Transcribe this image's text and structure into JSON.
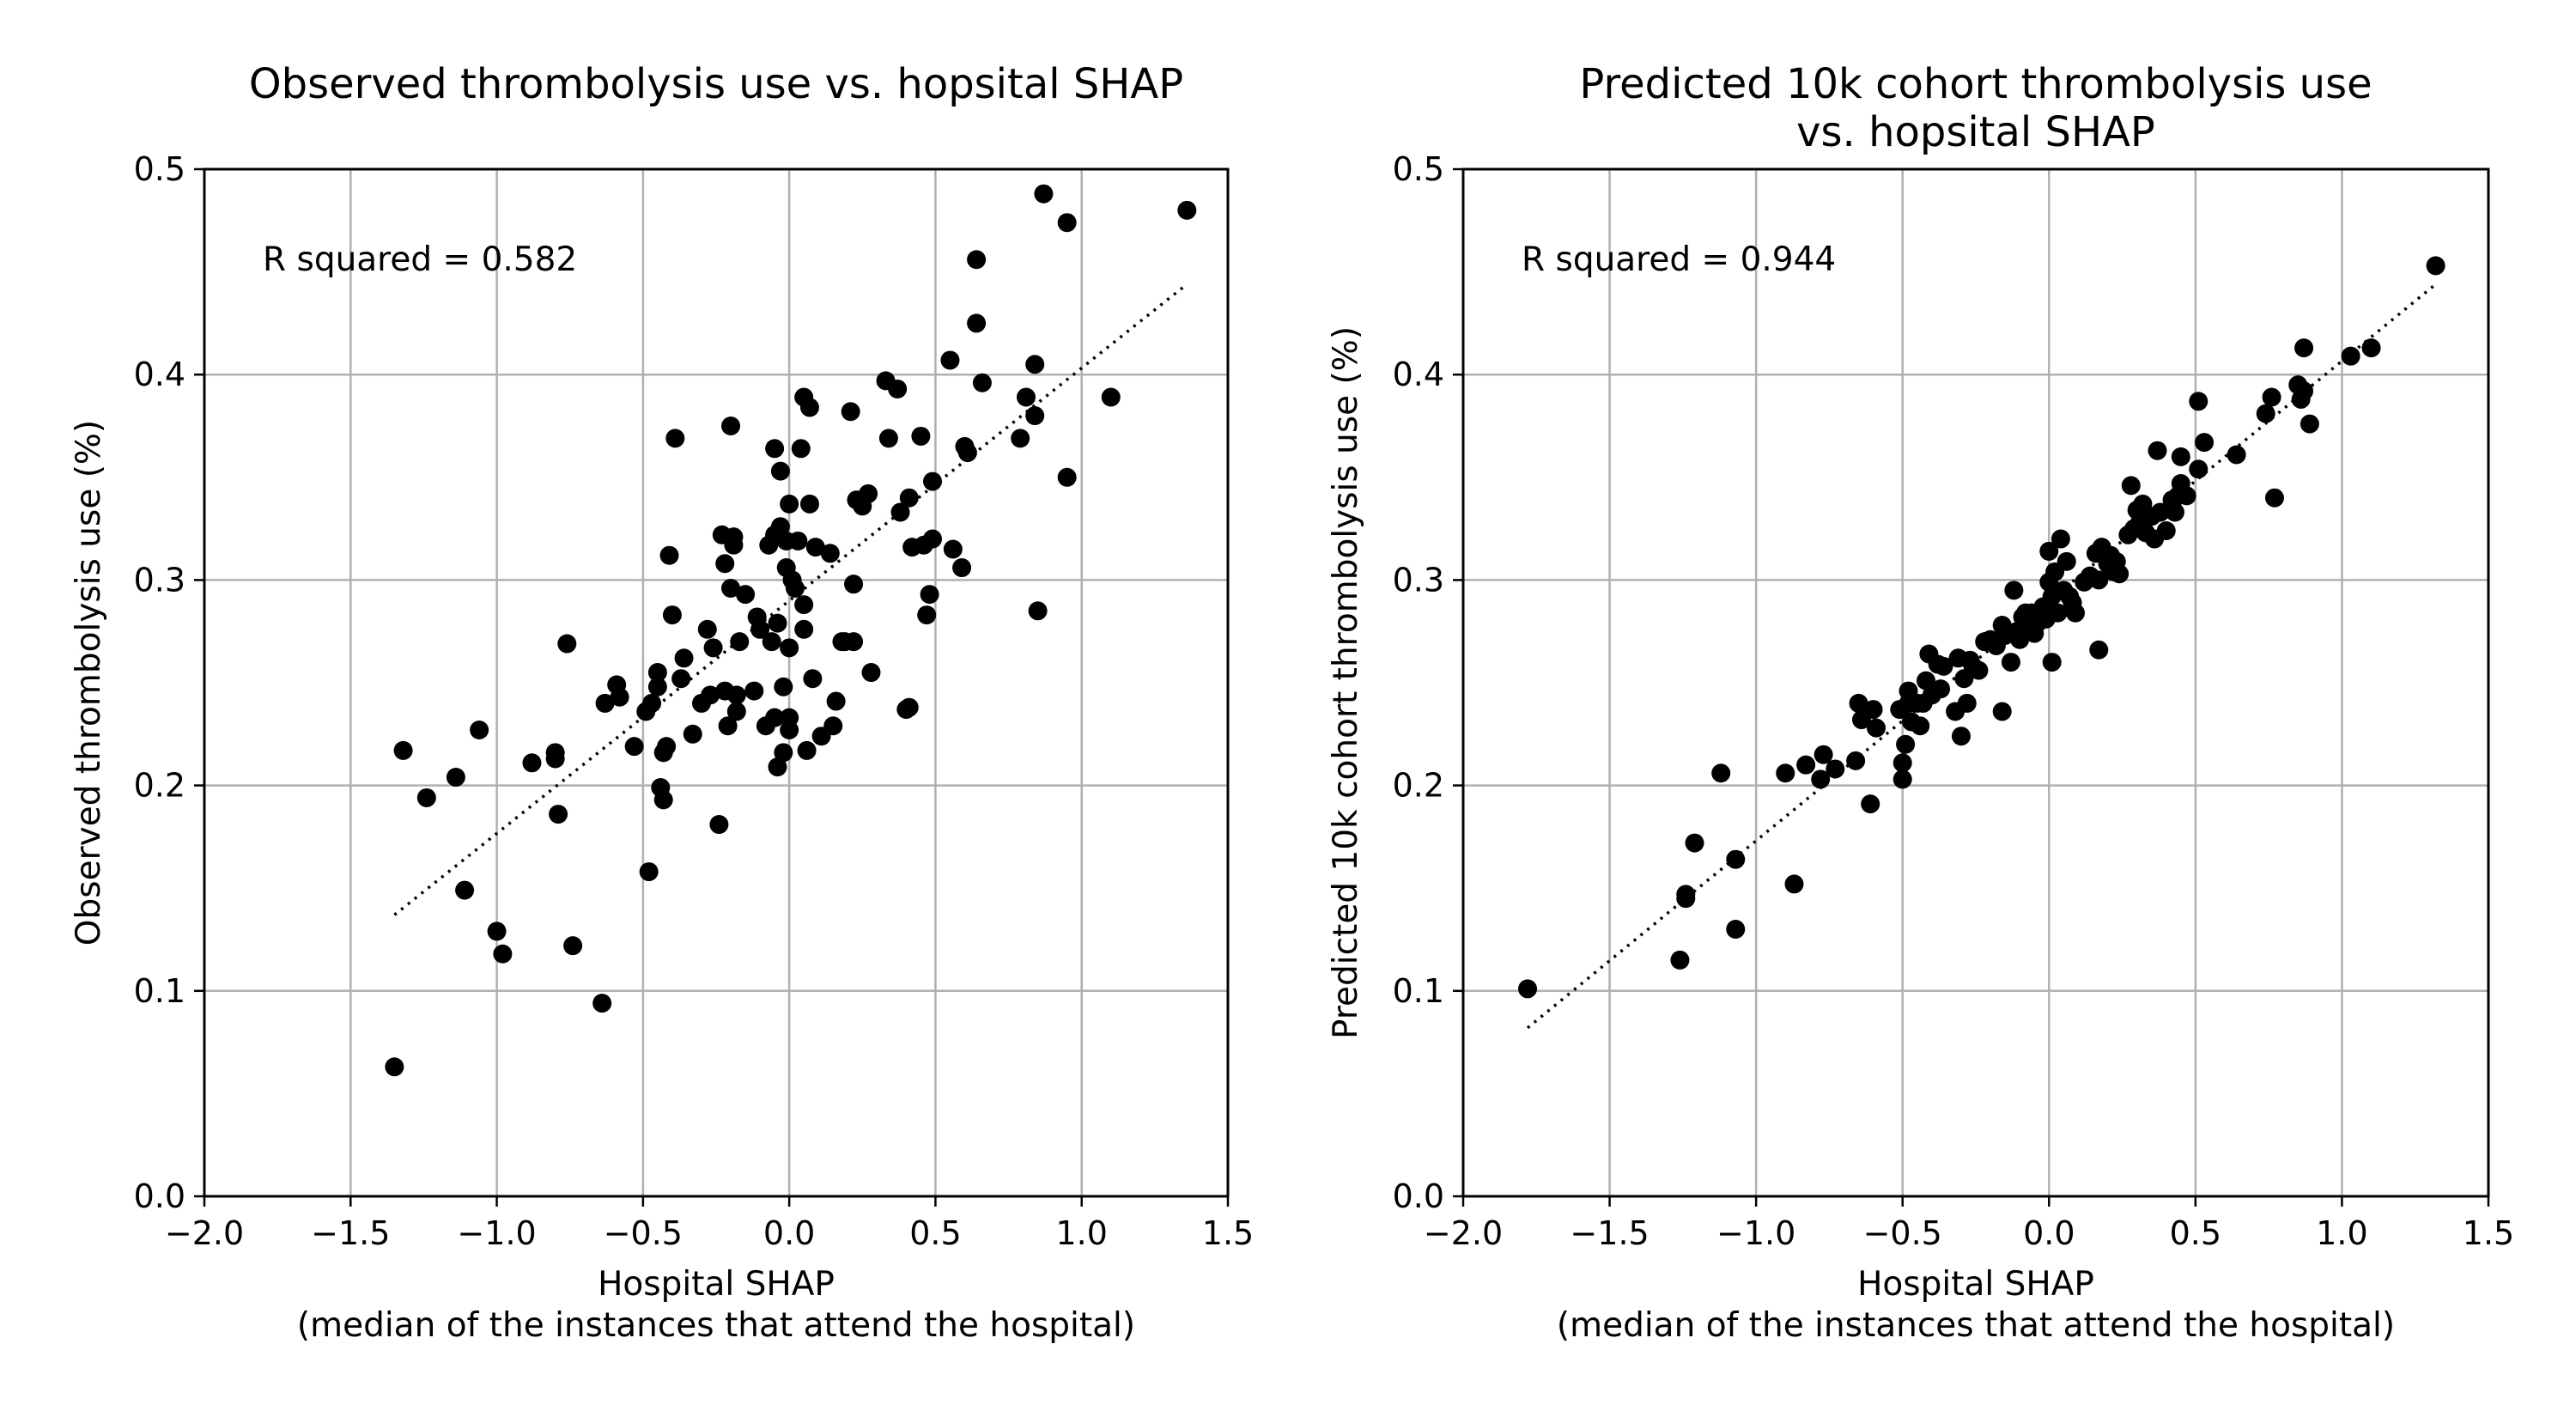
{
  "chart_data": [
    {
      "type": "scatter",
      "title": [
        "Observed thrombolysis use vs. hopsital SHAP"
      ],
      "xlabel": [
        "Hospital SHAP",
        "(median of the instances that attend the hospital)"
      ],
      "ylabel": "Observed thrombolysis use (%)",
      "xlim": [
        -2.0,
        1.5
      ],
      "ylim": [
        0.0,
        0.5
      ],
      "xticks": [
        "−2.0",
        "−1.5",
        "−1.0",
        "−0.5",
        "0.0",
        "0.5",
        "1.0",
        "1.5"
      ],
      "yticks": [
        "0.0",
        "0.1",
        "0.2",
        "0.3",
        "0.4",
        "0.5"
      ],
      "grid": true,
      "annotation": "R squared = 0.582",
      "trendline": {
        "x": [
          -1.35,
          1.36
        ],
        "y": [
          0.137,
          0.444
        ]
      },
      "points": [
        [
          -1.35,
          0.063
        ],
        [
          -1.32,
          0.217
        ],
        [
          -1.24,
          0.194
        ],
        [
          -1.14,
          0.204
        ],
        [
          -1.11,
          0.149
        ],
        [
          -1.06,
          0.227
        ],
        [
          -1.0,
          0.129
        ],
        [
          -0.98,
          0.118
        ],
        [
          -0.88,
          0.211
        ],
        [
          -0.8,
          0.216
        ],
        [
          -0.8,
          0.213
        ],
        [
          -0.79,
          0.186
        ],
        [
          -0.76,
          0.269
        ],
        [
          -0.74,
          0.122
        ],
        [
          -0.64,
          0.094
        ],
        [
          -0.63,
          0.24
        ],
        [
          -0.59,
          0.249
        ],
        [
          -0.58,
          0.243
        ],
        [
          -0.53,
          0.219
        ],
        [
          -0.49,
          0.236
        ],
        [
          -0.48,
          0.158
        ],
        [
          -0.47,
          0.24
        ],
        [
          -0.45,
          0.255
        ],
        [
          -0.45,
          0.248
        ],
        [
          -0.44,
          0.199
        ],
        [
          -0.43,
          0.193
        ],
        [
          -0.43,
          0.216
        ],
        [
          -0.42,
          0.219
        ],
        [
          -0.41,
          0.312
        ],
        [
          -0.4,
          0.283
        ],
        [
          -0.39,
          0.369
        ],
        [
          -0.37,
          0.252
        ],
        [
          -0.36,
          0.262
        ],
        [
          -0.33,
          0.225
        ],
        [
          -0.3,
          0.24
        ],
        [
          -0.28,
          0.276
        ],
        [
          -0.27,
          0.244
        ],
        [
          -0.26,
          0.267
        ],
        [
          -0.24,
          0.181
        ],
        [
          -0.23,
          0.322
        ],
        [
          -0.22,
          0.308
        ],
        [
          -0.22,
          0.246
        ],
        [
          -0.21,
          0.229
        ],
        [
          -0.2,
          0.375
        ],
        [
          -0.2,
          0.296
        ],
        [
          -0.19,
          0.321
        ],
        [
          -0.19,
          0.317
        ],
        [
          -0.18,
          0.244
        ],
        [
          -0.18,
          0.236
        ],
        [
          -0.17,
          0.27
        ],
        [
          -0.15,
          0.293
        ],
        [
          -0.12,
          0.246
        ],
        [
          -0.11,
          0.282
        ],
        [
          -0.1,
          0.276
        ],
        [
          -0.08,
          0.229
        ],
        [
          -0.07,
          0.317
        ],
        [
          -0.06,
          0.27
        ],
        [
          -0.05,
          0.364
        ],
        [
          -0.05,
          0.322
        ],
        [
          -0.05,
          0.233
        ],
        [
          -0.04,
          0.209
        ],
        [
          -0.04,
          0.279
        ],
        [
          -0.03,
          0.353
        ],
        [
          -0.03,
          0.326
        ],
        [
          -0.02,
          0.216
        ],
        [
          -0.02,
          0.248
        ],
        [
          -0.01,
          0.319
        ],
        [
          -0.01,
          0.306
        ],
        [
          0.0,
          0.337
        ],
        [
          0.0,
          0.267
        ],
        [
          0.0,
          0.233
        ],
        [
          0.0,
          0.227
        ],
        [
          0.01,
          0.3
        ],
        [
          0.02,
          0.296
        ],
        [
          0.03,
          0.319
        ],
        [
          0.04,
          0.364
        ],
        [
          0.05,
          0.389
        ],
        [
          0.05,
          0.288
        ],
        [
          0.05,
          0.276
        ],
        [
          0.06,
          0.217
        ],
        [
          0.07,
          0.337
        ],
        [
          0.07,
          0.384
        ],
        [
          0.08,
          0.252
        ],
        [
          0.09,
          0.316
        ],
        [
          0.11,
          0.224
        ],
        [
          0.14,
          0.313
        ],
        [
          0.15,
          0.229
        ],
        [
          0.16,
          0.241
        ],
        [
          0.18,
          0.27
        ],
        [
          0.19,
          0.27
        ],
        [
          0.21,
          0.382
        ],
        [
          0.22,
          0.298
        ],
        [
          0.22,
          0.27
        ],
        [
          0.23,
          0.339
        ],
        [
          0.25,
          0.336
        ],
        [
          0.27,
          0.342
        ],
        [
          0.28,
          0.255
        ],
        [
          0.33,
          0.397
        ],
        [
          0.34,
          0.369
        ],
        [
          0.37,
          0.393
        ],
        [
          0.38,
          0.333
        ],
        [
          0.4,
          0.237
        ],
        [
          0.41,
          0.238
        ],
        [
          0.41,
          0.34
        ],
        [
          0.42,
          0.316
        ],
        [
          0.45,
          0.37
        ],
        [
          0.46,
          0.317
        ],
        [
          0.47,
          0.283
        ],
        [
          0.48,
          0.293
        ],
        [
          0.49,
          0.348
        ],
        [
          0.49,
          0.32
        ],
        [
          0.55,
          0.407
        ],
        [
          0.56,
          0.315
        ],
        [
          0.6,
          0.365
        ],
        [
          0.61,
          0.362
        ],
        [
          0.64,
          0.456
        ],
        [
          0.64,
          0.425
        ],
        [
          0.66,
          0.396
        ],
        [
          0.79,
          0.369
        ],
        [
          0.81,
          0.389
        ],
        [
          0.84,
          0.405
        ],
        [
          0.84,
          0.38
        ],
        [
          0.85,
          0.285
        ],
        [
          0.87,
          0.488
        ],
        [
          0.95,
          0.474
        ],
        [
          0.95,
          0.35
        ],
        [
          1.1,
          0.389
        ],
        [
          1.36,
          0.48
        ],
        [
          0.59,
          0.306
        ]
      ]
    },
    {
      "type": "scatter",
      "title": [
        "Predicted 10k cohort thrombolysis use",
        "vs. hopsital SHAP"
      ],
      "xlabel": [
        "Hospital SHAP",
        "(median of the instances that attend the hospital)"
      ],
      "ylabel": "Predicted 10k cohort thrombolysis use (%)",
      "xlim": [
        -2.0,
        1.5
      ],
      "ylim": [
        0.0,
        0.5
      ],
      "xticks": [
        "−2.0",
        "−1.5",
        "−1.0",
        "−0.5",
        "0.0",
        "0.5",
        "1.0",
        "1.5"
      ],
      "yticks": [
        "0.0",
        "0.1",
        "0.2",
        "0.3",
        "0.4",
        "0.5"
      ],
      "grid": true,
      "annotation": "R squared = 0.944",
      "trendline": {
        "x": [
          -1.78,
          1.32
        ],
        "y": [
          0.082,
          0.444
        ]
      },
      "points": [
        [
          -1.78,
          0.101
        ],
        [
          -1.26,
          0.115
        ],
        [
          -1.24,
          0.147
        ],
        [
          -1.24,
          0.145
        ],
        [
          -1.21,
          0.172
        ],
        [
          -1.12,
          0.206
        ],
        [
          -1.07,
          0.164
        ],
        [
          -1.07,
          0.13
        ],
        [
          -0.9,
          0.206
        ],
        [
          -0.87,
          0.152
        ],
        [
          -0.83,
          0.21
        ],
        [
          -0.78,
          0.203
        ],
        [
          -0.77,
          0.215
        ],
        [
          -0.73,
          0.208
        ],
        [
          -0.66,
          0.212
        ],
        [
          -0.65,
          0.24
        ],
        [
          -0.64,
          0.232
        ],
        [
          -0.61,
          0.191
        ],
        [
          -0.6,
          0.237
        ],
        [
          -0.59,
          0.228
        ],
        [
          -0.51,
          0.237
        ],
        [
          -0.5,
          0.203
        ],
        [
          -0.5,
          0.211
        ],
        [
          -0.49,
          0.22
        ],
        [
          -0.48,
          0.24
        ],
        [
          -0.48,
          0.246
        ],
        [
          -0.47,
          0.231
        ],
        [
          -0.45,
          0.24
        ],
        [
          -0.44,
          0.229
        ],
        [
          -0.43,
          0.24
        ],
        [
          -0.42,
          0.251
        ],
        [
          -0.41,
          0.264
        ],
        [
          -0.4,
          0.244
        ],
        [
          -0.38,
          0.259
        ],
        [
          -0.37,
          0.247
        ],
        [
          -0.36,
          0.258
        ],
        [
          -0.32,
          0.236
        ],
        [
          -0.31,
          0.262
        ],
        [
          -0.3,
          0.224
        ],
        [
          -0.29,
          0.252
        ],
        [
          -0.28,
          0.24
        ],
        [
          -0.27,
          0.261
        ],
        [
          -0.26,
          0.258
        ],
        [
          -0.24,
          0.256
        ],
        [
          -0.22,
          0.27
        ],
        [
          -0.2,
          0.271
        ],
        [
          -0.18,
          0.268
        ],
        [
          -0.16,
          0.236
        ],
        [
          -0.16,
          0.278
        ],
        [
          -0.15,
          0.273
        ],
        [
          -0.13,
          0.26
        ],
        [
          -0.12,
          0.295
        ],
        [
          -0.11,
          0.275
        ],
        [
          -0.1,
          0.271
        ],
        [
          -0.09,
          0.282
        ],
        [
          -0.08,
          0.284
        ],
        [
          -0.07,
          0.279
        ],
        [
          -0.06,
          0.284
        ],
        [
          -0.05,
          0.274
        ],
        [
          -0.04,
          0.279
        ],
        [
          -0.02,
          0.287
        ],
        [
          -0.01,
          0.281
        ],
        [
          0.0,
          0.314
        ],
        [
          0.0,
          0.299
        ],
        [
          0.01,
          0.26
        ],
        [
          0.01,
          0.292
        ],
        [
          0.02,
          0.304
        ],
        [
          0.03,
          0.284
        ],
        [
          0.04,
          0.32
        ],
        [
          0.05,
          0.295
        ],
        [
          0.06,
          0.309
        ],
        [
          0.07,
          0.292
        ],
        [
          0.08,
          0.289
        ],
        [
          0.09,
          0.284
        ],
        [
          0.12,
          0.299
        ],
        [
          0.14,
          0.302
        ],
        [
          0.16,
          0.313
        ],
        [
          0.17,
          0.266
        ],
        [
          0.17,
          0.3
        ],
        [
          0.18,
          0.316
        ],
        [
          0.2,
          0.308
        ],
        [
          0.21,
          0.312
        ],
        [
          0.22,
          0.304
        ],
        [
          0.23,
          0.309
        ],
        [
          0.24,
          0.303
        ],
        [
          0.27,
          0.322
        ],
        [
          0.28,
          0.346
        ],
        [
          0.29,
          0.325
        ],
        [
          0.3,
          0.334
        ],
        [
          0.31,
          0.328
        ],
        [
          0.32,
          0.337
        ],
        [
          0.33,
          0.323
        ],
        [
          0.35,
          0.331
        ],
        [
          0.36,
          0.32
        ],
        [
          0.37,
          0.363
        ],
        [
          0.38,
          0.333
        ],
        [
          0.4,
          0.324
        ],
        [
          0.42,
          0.339
        ],
        [
          0.43,
          0.333
        ],
        [
          0.44,
          0.341
        ],
        [
          0.45,
          0.36
        ],
        [
          0.45,
          0.347
        ],
        [
          0.47,
          0.341
        ],
        [
          0.51,
          0.387
        ],
        [
          0.51,
          0.354
        ],
        [
          0.53,
          0.367
        ],
        [
          0.64,
          0.361
        ],
        [
          0.74,
          0.381
        ],
        [
          0.76,
          0.389
        ],
        [
          0.77,
          0.34
        ],
        [
          0.85,
          0.395
        ],
        [
          0.86,
          0.388
        ],
        [
          0.87,
          0.413
        ],
        [
          0.87,
          0.392
        ],
        [
          0.89,
          0.376
        ],
        [
          1.03,
          0.409
        ],
        [
          1.1,
          0.413
        ],
        [
          1.32,
          0.453
        ]
      ]
    }
  ]
}
